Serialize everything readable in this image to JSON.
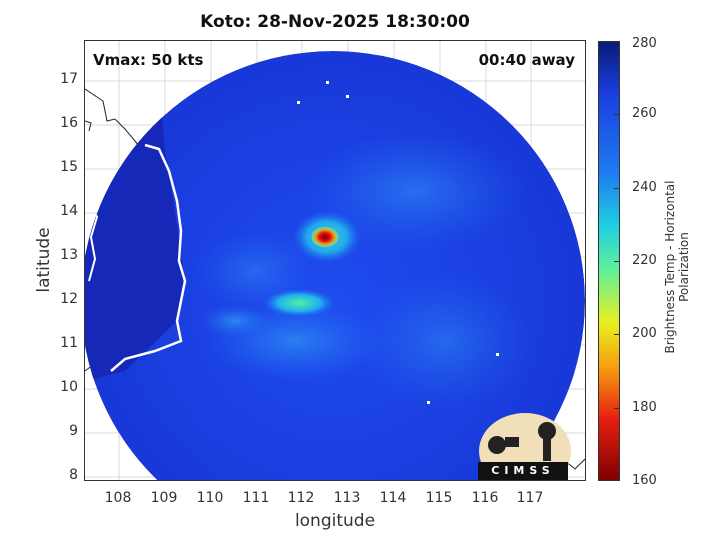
{
  "title": "Koto: 28-Nov-2025 18:30:00",
  "annotations": {
    "vmax": "Vmax: 50 kts",
    "time_away": "00:40 away"
  },
  "axes": {
    "xlabel": "longitude",
    "ylabel": "latitude",
    "xticks": [
      "108",
      "109",
      "110",
      "111",
      "112",
      "113",
      "114",
      "115",
      "116",
      "117"
    ],
    "yticks": [
      "8",
      "9",
      "10",
      "11",
      "12",
      "13",
      "14",
      "15",
      "16",
      "17"
    ]
  },
  "colorbar": {
    "label": "Brightness Temp - Horizontal Polarization",
    "ticks": [
      "280",
      "260",
      "240",
      "220",
      "200",
      "180",
      "160"
    ],
    "colors": [
      "#0a1a78",
      "#1a3fe0",
      "#1f7cf0",
      "#1fd0e0",
      "#5ff09a",
      "#e8f020",
      "#f7a010",
      "#e62010",
      "#800000"
    ]
  },
  "logo": {
    "text": "CIMSS"
  }
}
